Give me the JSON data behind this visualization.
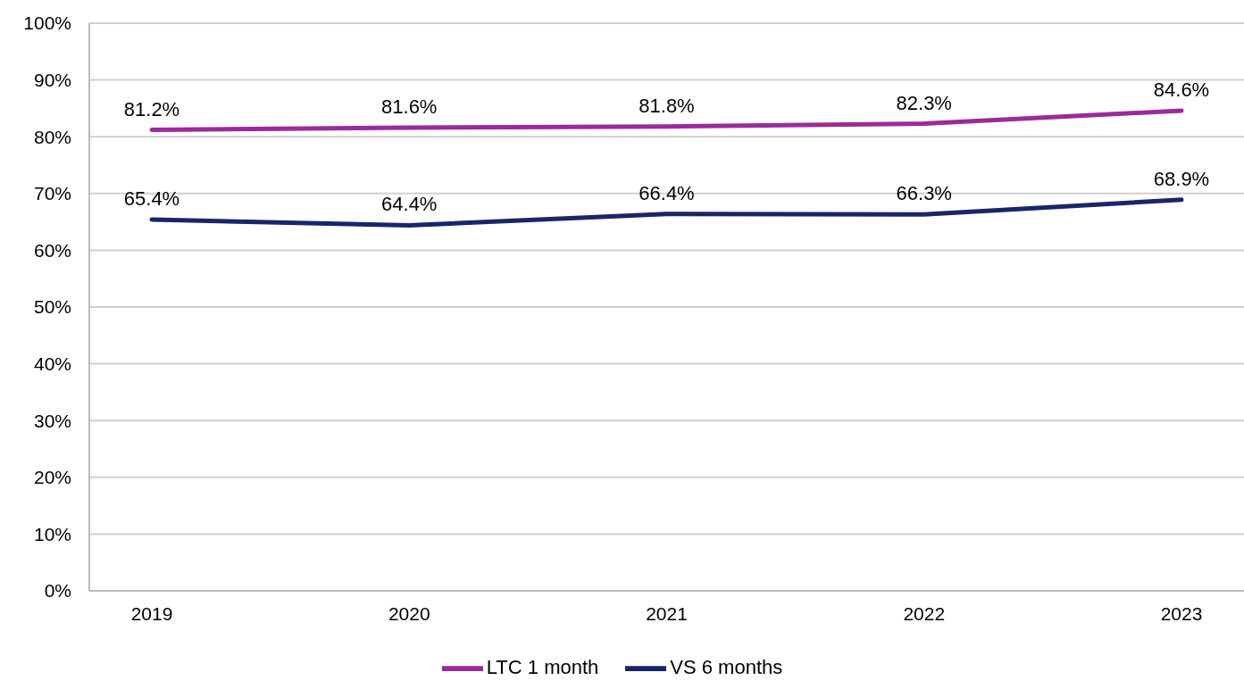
{
  "chart_data": {
    "type": "line",
    "categories": [
      "2019",
      "2020",
      "2021",
      "2022",
      "2023"
    ],
    "series": [
      {
        "name": "LTC 1 month",
        "color": "#9c2a9c",
        "values": [
          81.2,
          81.6,
          81.8,
          82.3,
          84.6
        ],
        "value_labels": [
          "81.2%",
          "81.6%",
          "81.8%",
          "82.3%",
          "84.6%"
        ]
      },
      {
        "name": "VS 6 months",
        "color": "#18256b",
        "values": [
          65.4,
          64.4,
          66.4,
          66.3,
          68.9
        ],
        "value_labels": [
          "65.4%",
          "64.4%",
          "66.4%",
          "66.3%",
          "68.9%"
        ]
      }
    ],
    "ylim": [
      0,
      100
    ],
    "yticks": [
      {
        "value": 0,
        "label": "0%"
      },
      {
        "value": 10,
        "label": "10%"
      },
      {
        "value": 20,
        "label": "20%"
      },
      {
        "value": 30,
        "label": "30%"
      },
      {
        "value": 40,
        "label": "40%"
      },
      {
        "value": 50,
        "label": "50%"
      },
      {
        "value": 60,
        "label": "60%"
      },
      {
        "value": 70,
        "label": "70%"
      },
      {
        "value": 80,
        "label": "80%"
      },
      {
        "value": 90,
        "label": "90%"
      },
      {
        "value": 100,
        "label": "100%"
      }
    ],
    "grid": "y",
    "legend": "bottom",
    "marker": "none",
    "line_style": "solid"
  }
}
